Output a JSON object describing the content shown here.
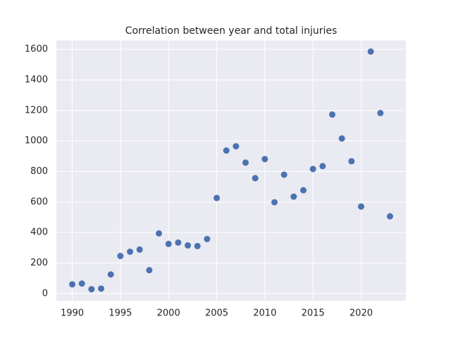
{
  "chart_data": {
    "type": "scatter",
    "title": "Correlation between year and total injuries",
    "series": [
      {
        "color": "#4c72b0",
        "x": [
          1990,
          1991,
          1992,
          1993,
          1994,
          1995,
          1996,
          1997,
          1998,
          1999,
          2000,
          2001,
          2002,
          2003,
          2004,
          2005,
          2006,
          2007,
          2008,
          2009,
          2010,
          2011,
          2012,
          2013,
          2014,
          2015,
          2016,
          2017,
          2018,
          2019,
          2020,
          2021,
          2022,
          2023
        ],
        "values": [
          60,
          65,
          28,
          32,
          125,
          246,
          274,
          288,
          153,
          394,
          325,
          334,
          315,
          311,
          357,
          626,
          937,
          965,
          858,
          756,
          881,
          598,
          779,
          635,
          677,
          816,
          835,
          1173,
          1016,
          867,
          570,
          1586,
          1183,
          506
        ]
      }
    ],
    "xlim": [
      1988.35,
      2024.65
    ],
    "xticks": [
      1990,
      1995,
      2000,
      2005,
      2010,
      2015,
      2020
    ],
    "ylim": [
      -48,
      1658
    ],
    "yticks": [
      0,
      200,
      400,
      600,
      800,
      1000,
      1200,
      1400,
      1600
    ],
    "grid": true
  }
}
